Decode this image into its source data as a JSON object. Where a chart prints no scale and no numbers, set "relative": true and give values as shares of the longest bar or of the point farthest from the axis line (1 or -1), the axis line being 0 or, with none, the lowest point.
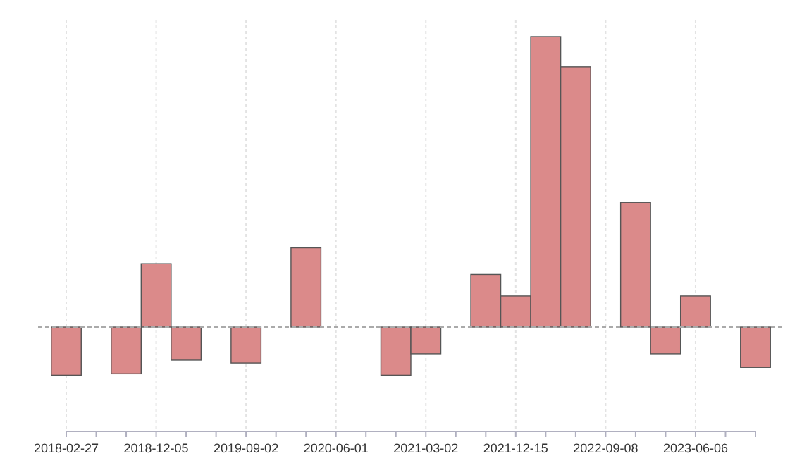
{
  "chart_data": {
    "type": "bar",
    "relative": true,
    "categories": [
      "2018-02-27",
      null,
      null,
      "2018-12-05",
      null,
      null,
      "2019-09-02",
      null,
      null,
      "2020-06-01",
      null,
      null,
      "2021-03-02",
      null,
      null,
      "2021-12-15",
      null,
      null,
      "2022-09-08",
      null,
      null,
      "2023-06-06",
      null,
      null
    ],
    "values": [
      -0.166,
      null,
      -0.161,
      0.218,
      -0.114,
      null,
      -0.124,
      null,
      0.273,
      null,
      null,
      -0.166,
      -0.092,
      null,
      0.181,
      0.107,
      1.0,
      0.896,
      null,
      0.429,
      -0.092,
      0.107,
      null,
      -0.139
    ],
    "color": "#db8a8a",
    "grid": "x",
    "ref_lines": [
      {
        "axis": "y",
        "value": 0,
        "color": "#aaaaaa",
        "line_style": "dashed"
      }
    ]
  }
}
